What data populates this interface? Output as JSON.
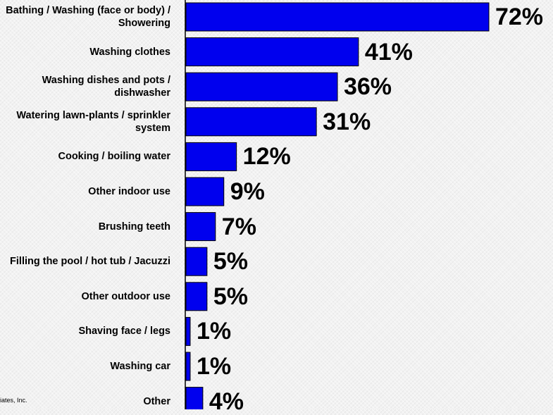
{
  "chart_data": {
    "type": "bar",
    "orientation": "horizontal",
    "categories": [
      "Bathing / Washing (face or body) / Showering",
      "Washing clothes",
      "Washing dishes and pots / dishwasher",
      "Watering lawn-plants / sprinkler system",
      "Cooking / boiling water",
      "Other indoor use",
      "Brushing teeth",
      "Filling the pool / hot tub / Jacuzzi",
      "Other outdoor use",
      "Shaving face / legs",
      "Washing car",
      "Other"
    ],
    "values": [
      72,
      41,
      36,
      31,
      12,
      9,
      7,
      5,
      5,
      1,
      1,
      4
    ],
    "value_labels": [
      "72%",
      "41%",
      "36%",
      "31%",
      "12%",
      "9%",
      "7%",
      "5%",
      "5%",
      "1%",
      "1%",
      "4%"
    ],
    "xlim": [
      0,
      100
    ],
    "grid": false,
    "bar_color": "#0000ee",
    "bar_edge_color": "#000000"
  },
  "footnote": "iates, Inc."
}
